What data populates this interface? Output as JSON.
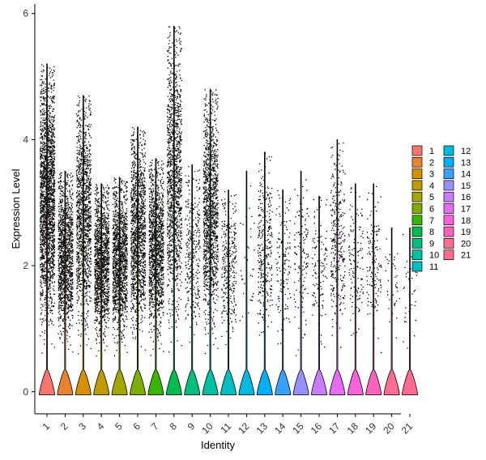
{
  "chart_data": {
    "type": "violin",
    "title": "",
    "xlabel": "Identity",
    "ylabel": "Expression Level",
    "ylim": [
      -0.35,
      6.15
    ],
    "yticks": [
      0,
      2,
      4,
      6
    ],
    "categories": [
      "1",
      "2",
      "3",
      "4",
      "5",
      "6",
      "7",
      "8",
      "9",
      "10",
      "11",
      "12",
      "13",
      "14",
      "15",
      "16",
      "17",
      "18",
      "19",
      "20",
      "21"
    ],
    "max_values": [
      5.2,
      3.5,
      4.7,
      3.3,
      3.4,
      4.2,
      3.7,
      5.8,
      3.6,
      4.8,
      3.2,
      3.5,
      3.8,
      3.2,
      3.5,
      3.1,
      4.0,
      3.3,
      3.3,
      2.6,
      2.6
    ],
    "cell_density": [
      "very high",
      "high",
      "high",
      "high",
      "high",
      "high",
      "high",
      "high",
      "medium",
      "high",
      "medium",
      "very low",
      "medium",
      "low",
      "low",
      "low",
      "medium",
      "low",
      "low",
      "very low",
      "very low"
    ],
    "colors": [
      "#F8766D",
      "#EA8331",
      "#D89000",
      "#C09B00",
      "#A3A500",
      "#7CAE00",
      "#39B600",
      "#00BB4E",
      "#00BF7D",
      "#00C1A3",
      "#00BFC4",
      "#00BAE0",
      "#00B0F6",
      "#35A2FF",
      "#9590FF",
      "#C77CFF",
      "#E76BF3",
      "#FA62DB",
      "#FF62BC",
      "#FF6C91",
      "#FF6C91"
    ],
    "legend": {
      "position": "right",
      "column1": [
        "1",
        "2",
        "3",
        "4",
        "5",
        "6",
        "7",
        "8",
        "9",
        "10",
        "11"
      ],
      "column2": [
        "12",
        "13",
        "14",
        "15",
        "16",
        "17",
        "18",
        "19",
        "20",
        "21"
      ]
    },
    "grid": false
  }
}
